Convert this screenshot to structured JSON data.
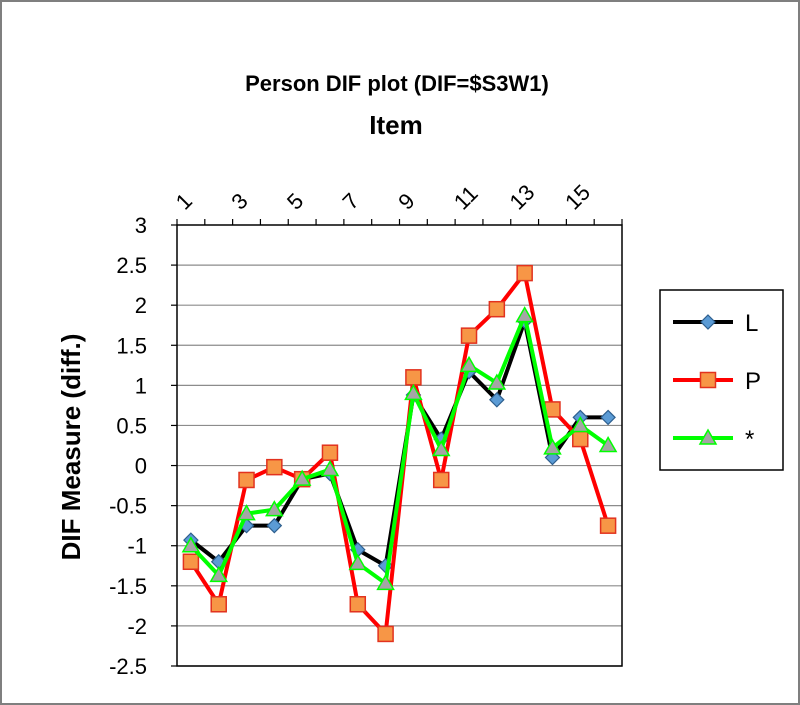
{
  "chart_data": {
    "type": "line",
    "title": "Person DIF plot (DIF=$S3W1)",
    "xlabel": "Item",
    "ylabel": "DIF Measure (diff.)",
    "x": [
      1,
      2,
      3,
      4,
      5,
      6,
      7,
      8,
      9,
      10,
      11,
      12,
      13,
      14,
      15,
      16
    ],
    "x_tick_labels": [
      "1",
      "3",
      "5",
      "7",
      "9",
      "11",
      "13",
      "15"
    ],
    "x_tick_positions": [
      1,
      3,
      5,
      7,
      9,
      11,
      13,
      15
    ],
    "y_ticks": [
      3,
      2.5,
      2,
      1.5,
      1,
      0.5,
      0,
      -0.5,
      -1,
      -1.5,
      -2,
      -2.5
    ],
    "y_tick_labels": [
      "3",
      "2.5",
      "2",
      "1.5",
      "1",
      "0.5",
      "0",
      "-0.5",
      "-1",
      "-1.5",
      "-2",
      "-2.5"
    ],
    "ylim": [
      -2.5,
      3
    ],
    "x_axis_position": "top",
    "grid": "horizontal",
    "legend_position": "right",
    "series": [
      {
        "name": "L",
        "line_color": "#000000",
        "marker": "diamond",
        "marker_fill": "#5b9bd5",
        "marker_stroke": "#2e5f8e",
        "values": [
          -0.93,
          -1.2,
          -0.75,
          -0.75,
          -0.17,
          -0.1,
          -1.05,
          -1.25,
          0.88,
          0.33,
          1.17,
          0.82,
          1.8,
          0.1,
          0.6,
          0.6
        ]
      },
      {
        "name": "P",
        "line_color": "#ff0000",
        "marker": "square",
        "marker_fill": "#f79646",
        "marker_stroke": "#e2321e",
        "values": [
          -1.2,
          -1.73,
          -0.18,
          -0.02,
          -0.17,
          0.16,
          -1.73,
          -2.1,
          1.1,
          -0.18,
          1.62,
          1.95,
          2.4,
          0.7,
          0.33,
          -0.75
        ]
      },
      {
        "name": "*",
        "line_color": "#00ff00",
        "marker": "triangle",
        "marker_fill": "#a5a5a5",
        "marker_stroke": "#00ff00",
        "values": [
          -1.0,
          -1.37,
          -0.6,
          -0.55,
          -0.17,
          -0.05,
          -1.22,
          -1.47,
          0.9,
          0.2,
          1.25,
          1.03,
          1.87,
          0.22,
          0.5,
          0.25
        ]
      }
    ]
  }
}
